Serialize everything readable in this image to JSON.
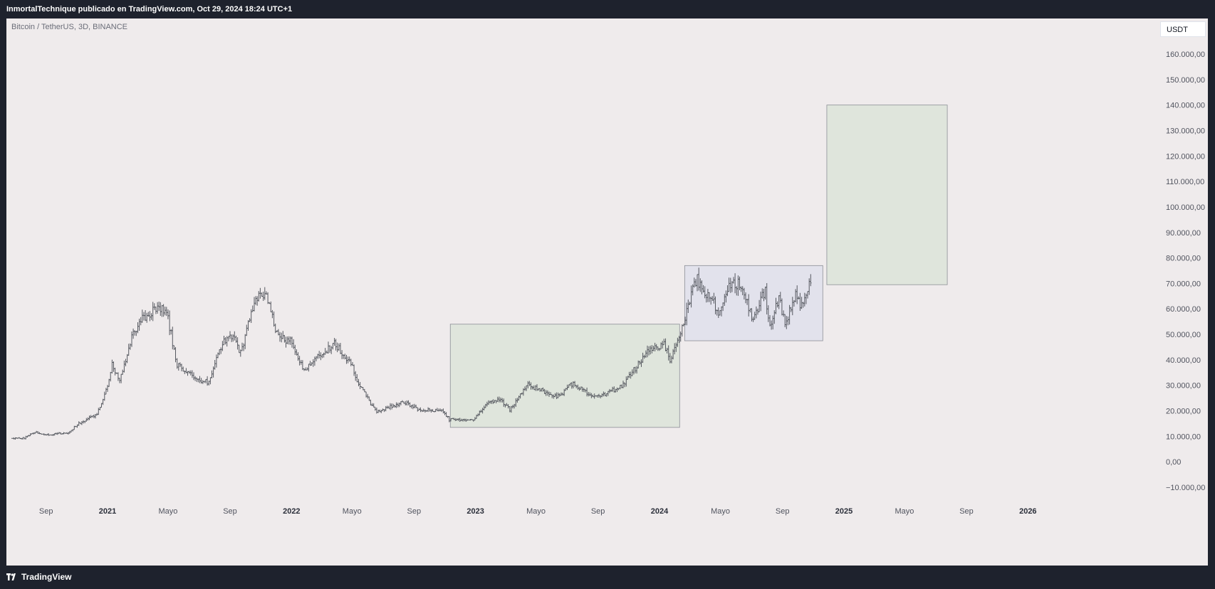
{
  "header": {
    "publish_line": "InmortalTechnique publicado en TradingView.com, Oct 29, 2024 18:24 UTC+1"
  },
  "symbol_label": "Bitcoin / TetherUS, 3D, BINANCE",
  "currency_button": "USDT",
  "footer": {
    "brand": "TradingView"
  },
  "colors": {
    "candle": "#55585f",
    "green_zone": "#dfe5dc",
    "blue_zone": "#e2e2ec",
    "zone_border": "#8c8f96"
  },
  "chart_data": {
    "type": "ohlc-bar",
    "yaxis_ticks": [
      {
        "value": 160000,
        "label": "160.000,00"
      },
      {
        "value": 150000,
        "label": "150.000,00"
      },
      {
        "value": 140000,
        "label": "140.000,00"
      },
      {
        "value": 130000,
        "label": "130.000,00"
      },
      {
        "value": 120000,
        "label": "120.000,00"
      },
      {
        "value": 110000,
        "label": "110.000,00"
      },
      {
        "value": 100000,
        "label": "100.000,00"
      },
      {
        "value": 90000,
        "label": "90.000,00"
      },
      {
        "value": 80000,
        "label": "80.000,00"
      },
      {
        "value": 70000,
        "label": "70.000,00"
      },
      {
        "value": 60000,
        "label": "60.000,00"
      },
      {
        "value": 50000,
        "label": "50.000,00"
      },
      {
        "value": 40000,
        "label": "40.000,00"
      },
      {
        "value": 30000,
        "label": "30.000,00"
      },
      {
        "value": 20000,
        "label": "20.000,00"
      },
      {
        "value": 10000,
        "label": "10.000,00"
      },
      {
        "value": 0,
        "label": "0,00"
      },
      {
        "value": -10000,
        "label": "−10.000,00"
      }
    ],
    "xaxis_ticks": [
      {
        "date": "2020-09-01",
        "label": "Sep",
        "bold": false
      },
      {
        "date": "2021-01-01",
        "label": "2021",
        "bold": true
      },
      {
        "date": "2021-05-01",
        "label": "Mayo",
        "bold": false
      },
      {
        "date": "2021-09-01",
        "label": "Sep",
        "bold": false
      },
      {
        "date": "2022-01-01",
        "label": "2022",
        "bold": true
      },
      {
        "date": "2022-05-01",
        "label": "Mayo",
        "bold": false
      },
      {
        "date": "2022-09-01",
        "label": "Sep",
        "bold": false
      },
      {
        "date": "2023-01-01",
        "label": "2023",
        "bold": true
      },
      {
        "date": "2023-05-01",
        "label": "Mayo",
        "bold": false
      },
      {
        "date": "2023-09-01",
        "label": "Sep",
        "bold": false
      },
      {
        "date": "2024-01-01",
        "label": "2024",
        "bold": true
      },
      {
        "date": "2024-05-01",
        "label": "Mayo",
        "bold": false
      },
      {
        "date": "2024-09-01",
        "label": "Sep",
        "bold": false
      },
      {
        "date": "2025-01-01",
        "label": "2025",
        "bold": true
      },
      {
        "date": "2025-05-01",
        "label": "Mayo",
        "bold": false
      },
      {
        "date": "2025-09-01",
        "label": "Sep",
        "bold": false
      },
      {
        "date": "2026-01-01",
        "label": "2026",
        "bold": true
      }
    ],
    "price_path": [
      [
        "2020-06-26",
        9200
      ],
      [
        "2020-07-20",
        9300
      ],
      [
        "2020-08-10",
        11800
      ],
      [
        "2020-09-05",
        10400
      ],
      [
        "2020-10-15",
        11500
      ],
      [
        "2020-11-05",
        15000
      ],
      [
        "2020-12-10",
        18500
      ],
      [
        "2020-12-30",
        28500
      ],
      [
        "2021-01-10",
        38000
      ],
      [
        "2021-01-25",
        32000
      ],
      [
        "2021-02-20",
        50000
      ],
      [
        "2021-03-15",
        57000
      ],
      [
        "2021-04-14",
        61000
      ],
      [
        "2021-05-01",
        56000
      ],
      [
        "2021-05-19",
        38000
      ],
      [
        "2021-06-22",
        33000
      ],
      [
        "2021-07-20",
        31000
      ],
      [
        "2021-08-15",
        46000
      ],
      [
        "2021-09-07",
        50000
      ],
      [
        "2021-09-21",
        42000
      ],
      [
        "2021-10-20",
        63000
      ],
      [
        "2021-11-10",
        66000
      ],
      [
        "2021-12-05",
        49000
      ],
      [
        "2022-01-01",
        47000
      ],
      [
        "2022-01-24",
        36000
      ],
      [
        "2022-03-01",
        42000
      ],
      [
        "2022-03-28",
        46500
      ],
      [
        "2022-05-01",
        38000
      ],
      [
        "2022-05-15",
        30000
      ],
      [
        "2022-06-18",
        19500
      ],
      [
        "2022-08-10",
        23500
      ],
      [
        "2022-09-15",
        20000
      ],
      [
        "2022-10-25",
        20500
      ],
      [
        "2022-11-10",
        16500
      ],
      [
        "2022-12-30",
        16600
      ],
      [
        "2023-01-20",
        22500
      ],
      [
        "2023-02-20",
        24500
      ],
      [
        "2023-03-10",
        20500
      ],
      [
        "2023-04-14",
        30200
      ],
      [
        "2023-06-15",
        25500
      ],
      [
        "2023-07-13",
        31000
      ],
      [
        "2023-08-17",
        26000
      ],
      [
        "2023-09-15",
        26500
      ],
      [
        "2023-10-20",
        30000
      ],
      [
        "2023-11-15",
        37000
      ],
      [
        "2023-12-10",
        44000
      ],
      [
        "2024-01-10",
        46000
      ],
      [
        "2024-01-23",
        39500
      ],
      [
        "2024-02-15",
        52000
      ],
      [
        "2024-03-05",
        66000
      ],
      [
        "2024-03-14",
        72000
      ],
      [
        "2024-04-15",
        63000
      ],
      [
        "2024-05-01",
        58000
      ],
      [
        "2024-05-21",
        70000
      ],
      [
        "2024-06-10",
        69500
      ],
      [
        "2024-07-05",
        55000
      ],
      [
        "2024-07-29",
        68000
      ],
      [
        "2024-08-05",
        53000
      ],
      [
        "2024-08-25",
        64000
      ],
      [
        "2024-09-06",
        53500
      ],
      [
        "2024-09-27",
        66000
      ],
      [
        "2024-10-10",
        60000
      ],
      [
        "2024-10-29",
        72000
      ]
    ],
    "zones": [
      {
        "name": "green-zone-2023",
        "start": "2022-11-12",
        "end": "2024-02-10",
        "top": 54000,
        "bottom": 13500,
        "fill": "#dfe5dc"
      },
      {
        "name": "blue-zone-2024",
        "start": "2024-02-20",
        "end": "2024-11-20",
        "top": 77000,
        "bottom": 47500,
        "fill": "#e2e2ec"
      },
      {
        "name": "green-zone-2025",
        "start": "2024-11-28",
        "end": "2025-07-25",
        "top": 140000,
        "bottom": 69500,
        "fill": "#dfe5dc"
      }
    ]
  }
}
